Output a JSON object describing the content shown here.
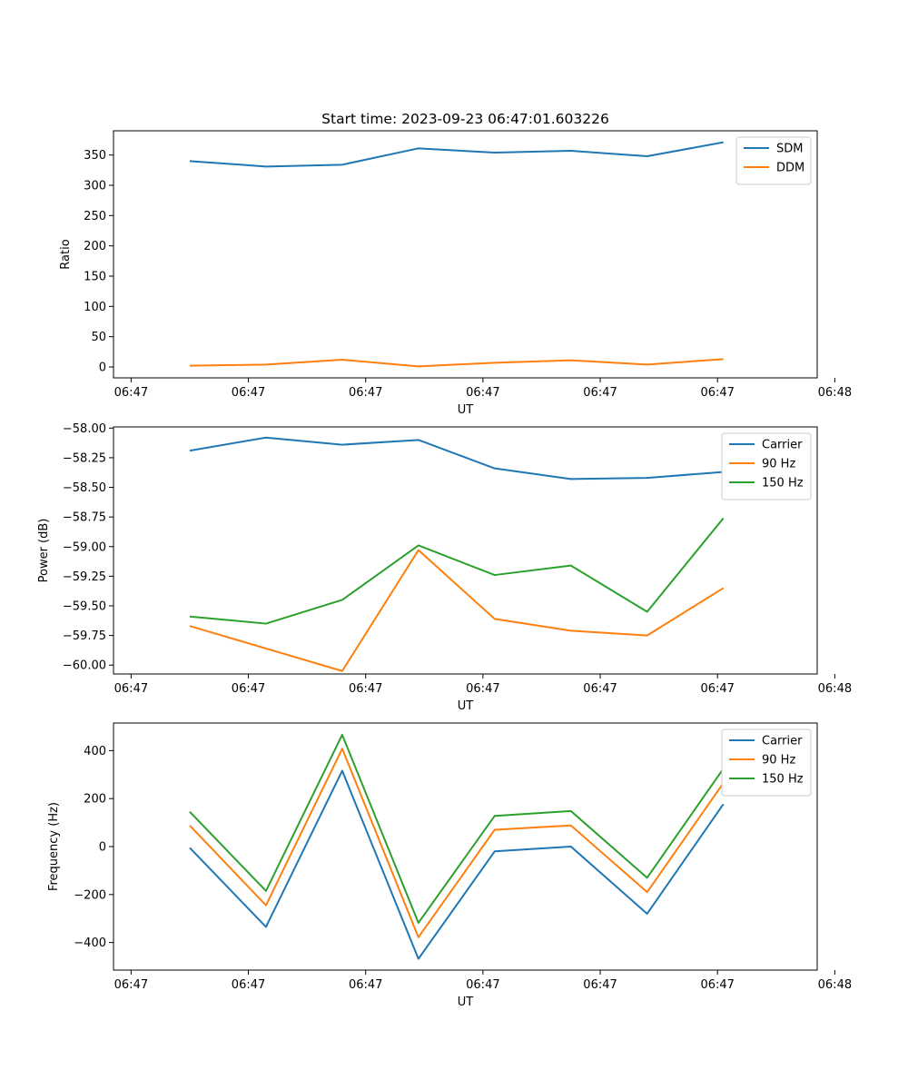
{
  "chart_data": [
    {
      "type": "line",
      "title": "Start time: 2023-09-23 06:47:01.603226",
      "xlabel": "UT",
      "ylabel": "Ratio",
      "x": [
        0.5,
        1.15,
        1.8,
        2.45,
        3.1,
        3.75,
        4.4,
        5.05
      ],
      "xlim": [
        -0.15,
        5.85
      ],
      "xticks": [
        0,
        1,
        2,
        3,
        4,
        5,
        6
      ],
      "xtick_labels": [
        "06:47",
        "06:47",
        "06:47",
        "06:47",
        "06:47",
        "06:47",
        "06:48"
      ],
      "ylim": [
        -18,
        390
      ],
      "yticks": [
        0,
        50,
        100,
        150,
        200,
        250,
        300,
        350
      ],
      "ytick_labels": [
        "0",
        "50",
        "100",
        "150",
        "200",
        "250",
        "300",
        "350"
      ],
      "legend_position": "top-right",
      "series": [
        {
          "name": "SDM",
          "color": "#1f77b4",
          "values": [
            340,
            331,
            334,
            361,
            354,
            357,
            348,
            371
          ]
        },
        {
          "name": "DDM",
          "color": "#ff7f0e",
          "values": [
            2,
            4,
            12,
            1,
            7,
            11,
            4,
            13
          ]
        }
      ]
    },
    {
      "type": "line",
      "title": "",
      "xlabel": "UT",
      "ylabel": "Power (dB)",
      "x": [
        0.5,
        1.15,
        1.8,
        2.45,
        3.1,
        3.75,
        4.4,
        5.05
      ],
      "xlim": [
        -0.15,
        5.85
      ],
      "xticks": [
        0,
        1,
        2,
        3,
        4,
        5,
        6
      ],
      "xtick_labels": [
        "06:47",
        "06:47",
        "06:47",
        "06:47",
        "06:47",
        "06:47",
        "06:48"
      ],
      "ylim": [
        -60.075,
        -57.99
      ],
      "yticks": [
        -58.0,
        -58.25,
        -58.5,
        -58.75,
        -59.0,
        -59.25,
        -59.5,
        -59.75,
        -60.0
      ],
      "ytick_labels": [
        "−58.00",
        "−58.25",
        "−58.50",
        "−58.75",
        "−59.00",
        "−59.25",
        "−59.50",
        "−59.75",
        "−60.00"
      ],
      "legend_position": "top-right",
      "series": [
        {
          "name": "Carrier",
          "color": "#1f77b4",
          "values": [
            -58.19,
            -58.08,
            -58.14,
            -58.1,
            -58.34,
            -58.43,
            -58.42,
            -58.37
          ]
        },
        {
          "name": "90 Hz",
          "color": "#ff7f0e",
          "values": [
            -59.67,
            -59.86,
            -60.05,
            -59.03,
            -59.61,
            -59.71,
            -59.75,
            -59.35
          ]
        },
        {
          "name": "150 Hz",
          "color": "#2ca02c",
          "values": [
            -59.59,
            -59.65,
            -59.45,
            -58.99,
            -59.24,
            -59.16,
            -59.55,
            -58.76
          ]
        }
      ]
    },
    {
      "type": "line",
      "title": "",
      "xlabel": "UT",
      "ylabel": "Frequency (Hz)",
      "x": [
        0.5,
        1.15,
        1.8,
        2.45,
        3.1,
        3.75,
        4.4,
        5.05
      ],
      "xlim": [
        -0.15,
        5.85
      ],
      "xticks": [
        0,
        1,
        2,
        3,
        4,
        5,
        6
      ],
      "xtick_labels": [
        "06:47",
        "06:47",
        "06:47",
        "06:47",
        "06:47",
        "06:47",
        "06:48"
      ],
      "ylim": [
        -515,
        515
      ],
      "yticks": [
        400,
        200,
        0,
        -200,
        -400
      ],
      "ytick_labels": [
        "400",
        "200",
        "0",
        "−200",
        "−400"
      ],
      "legend_position": "top-right",
      "series": [
        {
          "name": "Carrier",
          "color": "#1f77b4",
          "values": [
            -5,
            -335,
            316,
            -468,
            -20,
            0,
            -280,
            177
          ]
        },
        {
          "name": "90 Hz",
          "color": "#ff7f0e",
          "values": [
            88,
            -245,
            408,
            -378,
            70,
            88,
            -190,
            265
          ]
        },
        {
          "name": "150 Hz",
          "color": "#2ca02c",
          "values": [
            145,
            -185,
            466,
            -318,
            128,
            148,
            -130,
            325
          ]
        }
      ]
    }
  ]
}
